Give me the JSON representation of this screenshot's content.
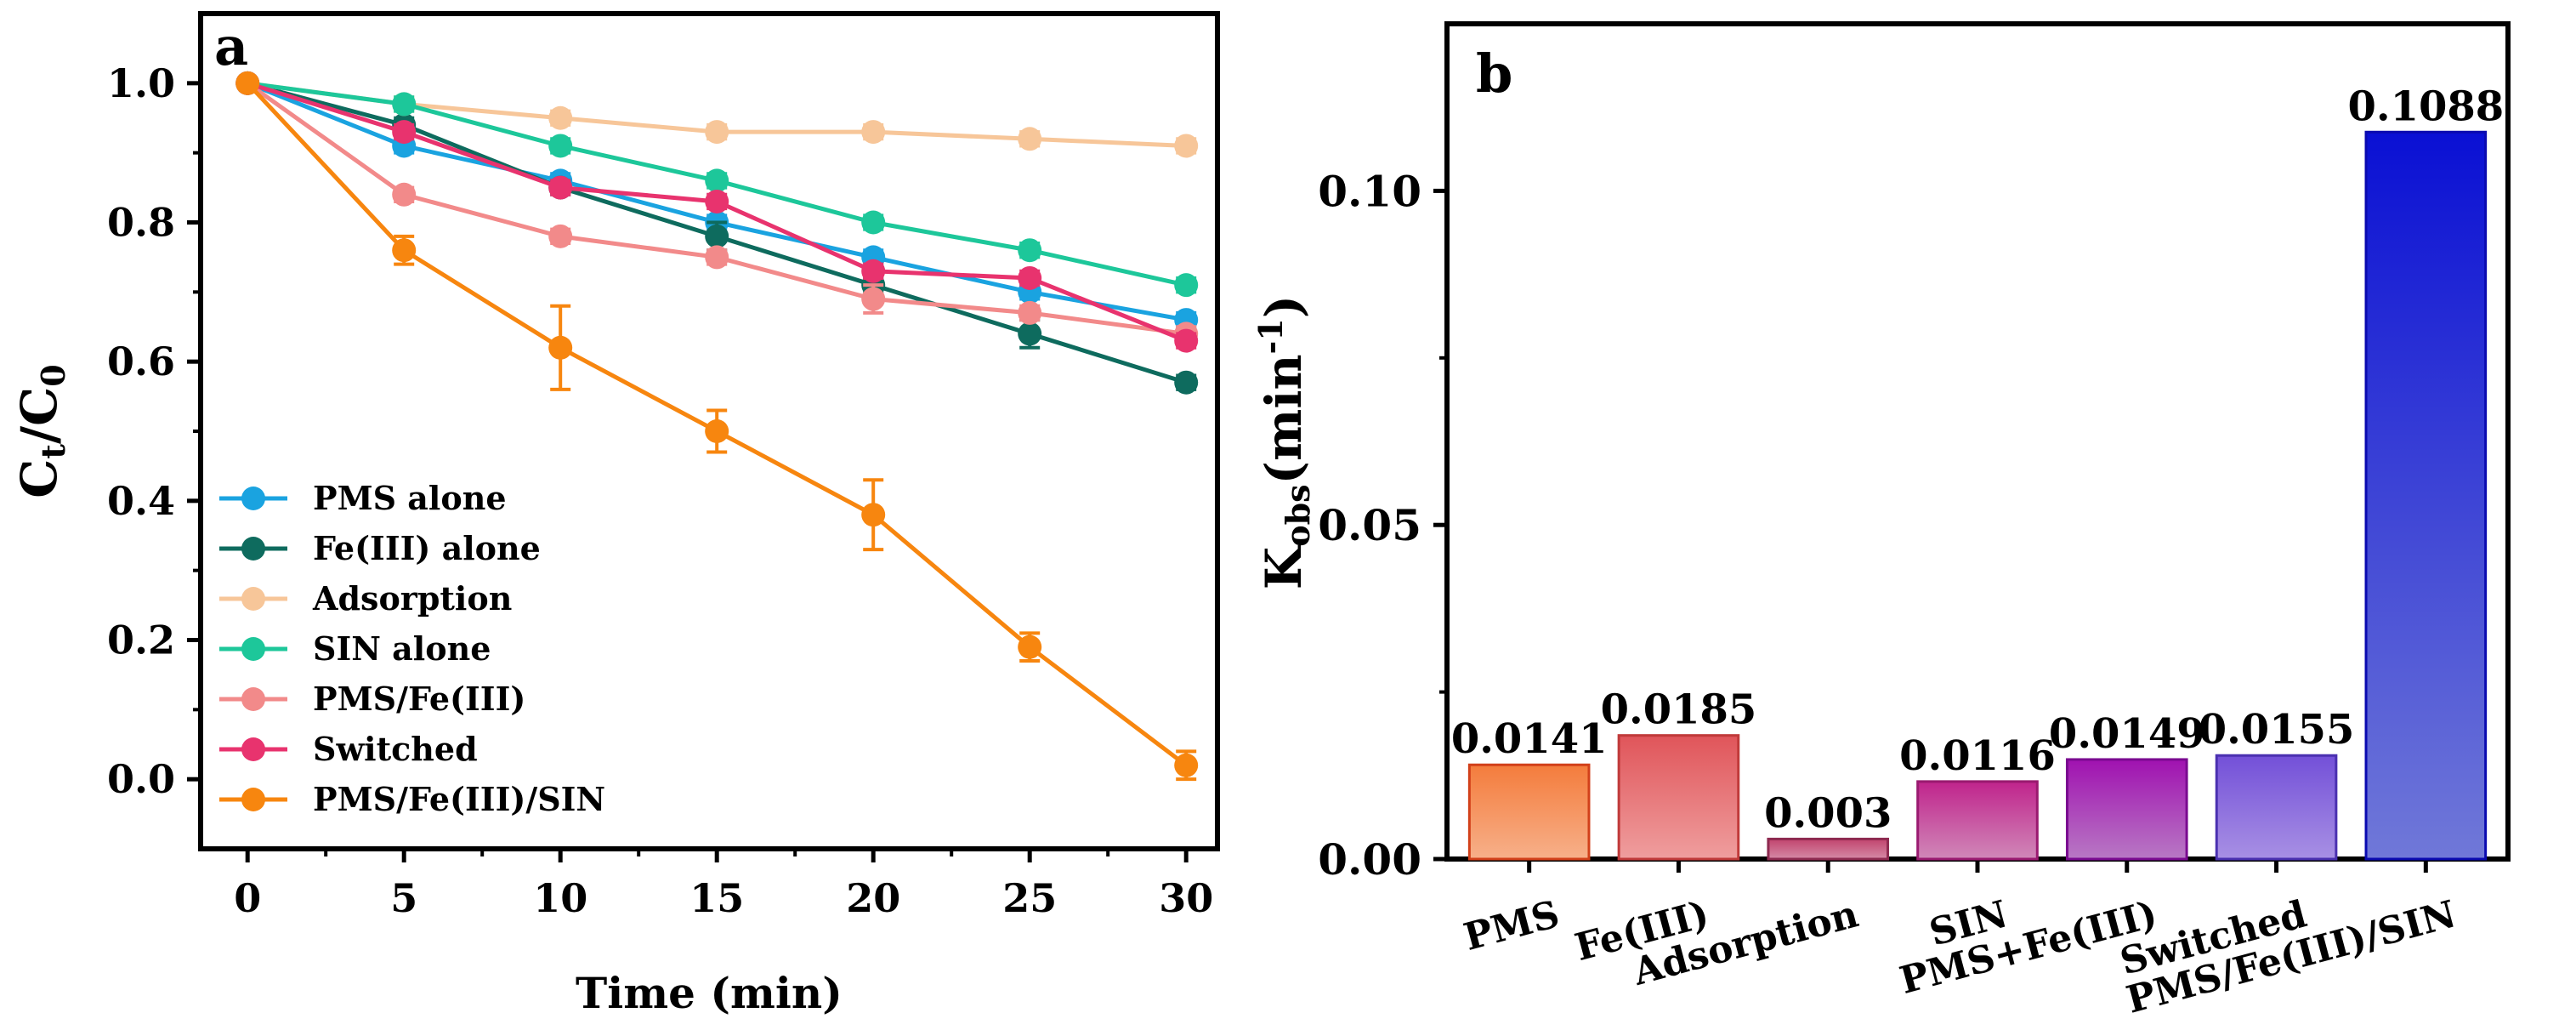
{
  "chart_data": [
    {
      "panel_label": "a",
      "type": "line",
      "title": "",
      "xlabel": "Time (min)",
      "ylabel": {
        "main": "C",
        "sub1": "t",
        "slash": "/C",
        "sub2": "0"
      },
      "xlim": [
        -1.5,
        31
      ],
      "ylim": [
        -0.1,
        1.1
      ],
      "xticks": [
        0,
        5,
        10,
        15,
        20,
        25,
        30
      ],
      "yticks": [
        0.0,
        0.2,
        0.4,
        0.6,
        0.8,
        1.0
      ],
      "ytick_labels": [
        "0.0",
        "0.2",
        "0.4",
        "0.6",
        "0.8",
        "1.0"
      ],
      "grid": false,
      "legend_position": "bottom-left",
      "x": [
        0,
        5,
        10,
        15,
        20,
        25,
        30
      ],
      "series": [
        {
          "name": "PMS alone",
          "color": "#1aa3e0",
          "values": [
            1.0,
            0.91,
            0.86,
            0.8,
            0.75,
            0.7,
            0.66
          ],
          "errors": [
            0,
            0.01,
            0.01,
            0.01,
            0.01,
            0.01,
            0.01
          ]
        },
        {
          "name": "Fe(III) alone",
          "color": "#0e6b5e",
          "values": [
            1.0,
            0.94,
            0.85,
            0.78,
            0.71,
            0.64,
            0.57
          ],
          "errors": [
            0,
            0.01,
            0.01,
            0.02,
            0.01,
            0.02,
            0.01
          ]
        },
        {
          "name": "Adsorption",
          "color": "#f7c699",
          "values": [
            1.0,
            0.97,
            0.95,
            0.93,
            0.93,
            0.92,
            0.91
          ],
          "errors": [
            0,
            0.01,
            0.01,
            0.01,
            0.01,
            0.01,
            0.01
          ]
        },
        {
          "name": "SIN alone",
          "color": "#1dc79a",
          "values": [
            1.0,
            0.97,
            0.91,
            0.86,
            0.8,
            0.76,
            0.71
          ],
          "errors": [
            0,
            0.01,
            0.01,
            0.01,
            0.01,
            0.01,
            0.01
          ]
        },
        {
          "name": "PMS/Fe(III)",
          "color": "#f28a8a",
          "values": [
            1.0,
            0.84,
            0.78,
            0.75,
            0.69,
            0.67,
            0.64
          ],
          "errors": [
            0,
            0.01,
            0.01,
            0.01,
            0.02,
            0.01,
            0.01
          ]
        },
        {
          "name": "Switched",
          "color": "#e8336e",
          "values": [
            1.0,
            0.93,
            0.85,
            0.83,
            0.73,
            0.72,
            0.63
          ],
          "errors": [
            0,
            0.01,
            0.01,
            0.01,
            0.01,
            0.01,
            0.01
          ]
        },
        {
          "name": "PMS/Fe(III)/SIN",
          "color": "#f7860f",
          "values": [
            1.0,
            0.76,
            0.62,
            0.5,
            0.38,
            0.19,
            0.02
          ],
          "errors": [
            0,
            0.02,
            0.06,
            0.03,
            0.05,
            0.02,
            0.02
          ]
        }
      ]
    },
    {
      "panel_label": "b",
      "type": "bar",
      "title": "",
      "xlabel": "",
      "ylabel": {
        "main": "K",
        "sub": "obs",
        "paren_open": "(min",
        "sup": "-1",
        "paren_close": ")"
      },
      "ylim": [
        0,
        0.125
      ],
      "yticks": [
        0.0,
        0.05,
        0.1
      ],
      "ytick_labels": [
        "0.00",
        "0.05",
        "0.10"
      ],
      "grid": false,
      "categories": [
        "PMS",
        "Fe(III)",
        "Adsorption",
        "SIN",
        "PMS+Fe(III)",
        "Switched",
        "PMS/Fe(III)/SIN"
      ],
      "values": [
        0.0141,
        0.0185,
        0.003,
        0.0116,
        0.0149,
        0.0155,
        0.1088
      ],
      "data_labels": [
        "0.0141",
        "0.0185",
        "0.003",
        "0.0116",
        "0.0149",
        "0.0155",
        "0.1088"
      ],
      "bar_colors_top": [
        "#f47c3c",
        "#e0555a",
        "#c1446e",
        "#c0248c",
        "#a012b0",
        "#7350d8",
        "#0a10d4"
      ],
      "bar_colors_bottom": [
        "#f7b08a",
        "#ef9e9e",
        "#d58aa6",
        "#d088b8",
        "#b878c4",
        "#a890e4",
        "#7078d8"
      ],
      "bar_edge_colors": [
        "#d2401a",
        "#c03a3a",
        "#8e2a50",
        "#9a1a70",
        "#7a0a90",
        "#4a30b0",
        "#0a0ab0"
      ]
    }
  ]
}
